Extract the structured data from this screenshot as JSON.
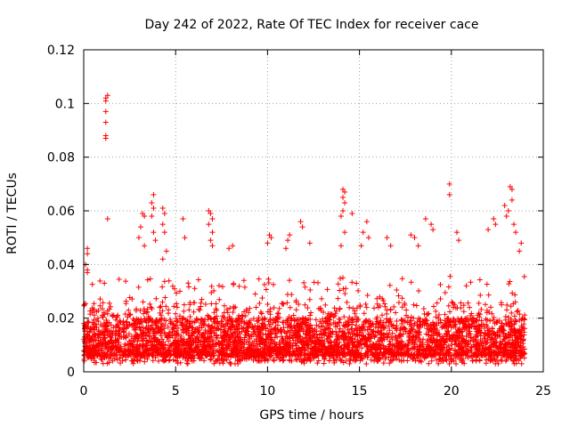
{
  "chart_data": {
    "type": "scatter",
    "title": "Day 242 of 2022, Rate Of TEC Index for receiver cace",
    "xlabel": "GPS time / hours",
    "ylabel": "ROTI / TECUs",
    "xlim": [
      0,
      25
    ],
    "ylim": [
      0,
      0.12
    ],
    "xticks": [
      0,
      5,
      10,
      15,
      20,
      25
    ],
    "yticks": [
      0,
      0.02,
      0.04,
      0.06,
      0.08,
      0.1,
      0.12
    ],
    "xtick_labels": [
      "0",
      "5",
      "10",
      "15",
      "20",
      "25"
    ],
    "ytick_labels": [
      "0",
      "0.02",
      "0.04",
      "0.06",
      "0.08",
      "0.1",
      "0.12"
    ],
    "grid": true,
    "marker": "+",
    "color": "#ff0000",
    "series": [
      {
        "name": "ROTI",
        "points": [
          [
            1.2,
            0.102
          ],
          [
            1.2,
            0.101
          ],
          [
            1.2,
            0.097
          ],
          [
            1.2,
            0.093
          ],
          [
            1.2,
            0.088
          ],
          [
            1.2,
            0.087
          ],
          [
            1.3,
            0.103
          ],
          [
            1.3,
            0.057
          ],
          [
            0.2,
            0.046
          ],
          [
            0.2,
            0.044
          ],
          [
            0.1,
            0.04
          ],
          [
            0.2,
            0.038
          ],
          [
            0.2,
            0.037
          ],
          [
            3.2,
            0.059
          ],
          [
            3.3,
            0.058
          ],
          [
            3.1,
            0.054
          ],
          [
            3.0,
            0.05
          ],
          [
            3.3,
            0.047
          ],
          [
            3.8,
            0.066
          ],
          [
            3.7,
            0.063
          ],
          [
            3.8,
            0.061
          ],
          [
            3.7,
            0.058
          ],
          [
            3.8,
            0.052
          ],
          [
            3.9,
            0.049
          ],
          [
            4.3,
            0.061
          ],
          [
            4.4,
            0.059
          ],
          [
            4.3,
            0.055
          ],
          [
            4.4,
            0.052
          ],
          [
            4.5,
            0.045
          ],
          [
            4.3,
            0.042
          ],
          [
            5.4,
            0.057
          ],
          [
            5.5,
            0.05
          ],
          [
            6.8,
            0.06
          ],
          [
            6.9,
            0.059
          ],
          [
            7.0,
            0.057
          ],
          [
            6.8,
            0.055
          ],
          [
            7.0,
            0.052
          ],
          [
            6.9,
            0.049
          ],
          [
            7.0,
            0.047
          ],
          [
            8.1,
            0.047
          ],
          [
            7.9,
            0.046
          ],
          [
            10.1,
            0.051
          ],
          [
            10.2,
            0.05
          ],
          [
            10.0,
            0.048
          ],
          [
            11.2,
            0.051
          ],
          [
            11.1,
            0.049
          ],
          [
            11.0,
            0.046
          ],
          [
            11.8,
            0.056
          ],
          [
            11.9,
            0.054
          ],
          [
            12.3,
            0.048
          ],
          [
            14.1,
            0.068
          ],
          [
            14.2,
            0.067
          ],
          [
            14.1,
            0.065
          ],
          [
            14.2,
            0.063
          ],
          [
            14.1,
            0.06
          ],
          [
            14.0,
            0.058
          ],
          [
            14.2,
            0.052
          ],
          [
            14.0,
            0.047
          ],
          [
            14.6,
            0.059
          ],
          [
            15.1,
            0.047
          ],
          [
            15.4,
            0.056
          ],
          [
            15.2,
            0.052
          ],
          [
            15.5,
            0.05
          ],
          [
            16.5,
            0.05
          ],
          [
            16.7,
            0.047
          ],
          [
            17.8,
            0.051
          ],
          [
            18.0,
            0.05
          ],
          [
            18.2,
            0.047
          ],
          [
            18.6,
            0.057
          ],
          [
            18.9,
            0.055
          ],
          [
            19.0,
            0.053
          ],
          [
            19.9,
            0.07
          ],
          [
            19.9,
            0.066
          ],
          [
            20.3,
            0.052
          ],
          [
            20.4,
            0.049
          ],
          [
            22.3,
            0.057
          ],
          [
            22.4,
            0.055
          ],
          [
            22.0,
            0.053
          ],
          [
            22.9,
            0.062
          ],
          [
            23.0,
            0.058
          ],
          [
            23.1,
            0.06
          ],
          [
            23.2,
            0.069
          ],
          [
            23.3,
            0.068
          ],
          [
            23.3,
            0.064
          ],
          [
            23.4,
            0.055
          ],
          [
            23.5,
            0.052
          ],
          [
            23.8,
            0.048
          ],
          [
            23.7,
            0.045
          ]
        ],
        "dense_band": [
          {
            "x": [
              0.0,
              24.0
            ],
            "y": [
              0.006,
              0.02
            ]
          },
          {
            "x": [
              0.0,
              24.0
            ],
            "y": [
              0.004,
              0.026
            ]
          },
          {
            "x": [
              0.0,
              24.0
            ],
            "y": [
              0.003,
              0.036
            ]
          }
        ]
      }
    ]
  }
}
